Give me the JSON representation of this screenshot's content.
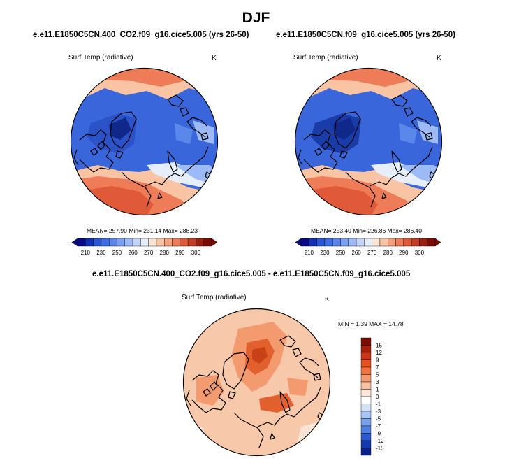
{
  "figure": {
    "title": "DJF"
  },
  "panels": [
    {
      "case": "e.e11.E1850C5CN.400_CO2.f09_g16.cice5.005 (yrs 26-50)",
      "variable": "Surf Temp (radiative)",
      "units": "K",
      "mean": "257.90",
      "min": "231.14",
      "max": "288.23",
      "stats_line": "MEAN= 257.90   Min= 231.14   Max= 288.23"
    },
    {
      "case": "e.e11.E1850C5CN.f09_g16.cice5.005 (yrs 26-50)",
      "variable": "Surf Temp (radiative)",
      "units": "K",
      "mean": "253.40",
      "min": "226.86",
      "max": "286.40",
      "stats_line": "MEAN= 253.40   Min= 226.86   Max= 286.40"
    }
  ],
  "difference": {
    "title": "e.e11.E1850C5CN.400_CO2.f09_g16.cice5.005 - e.e11.E1850C5CN.f09_g16.cice5.005",
    "variable": "Surf Temp (radiative)",
    "units": "K",
    "stats_line": "MIN =   1.39 MAX =  14.78"
  },
  "abs_colorbar": {
    "labels": [
      "210",
      "230",
      "250",
      "260",
      "270",
      "280",
      "290",
      "300"
    ],
    "colors": [
      "#08088a",
      "#1030b8",
      "#2856d8",
      "#3c6ee6",
      "#5a86ee",
      "#7ba2f2",
      "#9cbaf5",
      "#c2d4f8",
      "#e6eefa",
      "#fbe4d6",
      "#f8c4a4",
      "#f4a07c",
      "#ee7c58",
      "#e05a3a",
      "#c43c22",
      "#9e1e0e",
      "#7a0c04"
    ]
  },
  "diff_colorbar": {
    "labels": [
      "15",
      "12",
      "9",
      "7",
      "5",
      "3",
      "1",
      "0",
      "-1",
      "-3",
      "-5",
      "-7",
      "-9",
      "-12",
      "-15"
    ],
    "colors": [
      "#7a0c04",
      "#a81e0c",
      "#cc3414",
      "#e85020",
      "#f07040",
      "#f49a70",
      "#f8c0a0",
      "#fce4d6",
      "#ffffff",
      "#d4e2f8",
      "#a8c4f2",
      "#7aa0ea",
      "#5080e0",
      "#2c5ad0",
      "#1438b0",
      "#08208a"
    ]
  },
  "map_colors": {
    "ocean_ice": "#3a66dc",
    "deep_cold": "#1a3ca8",
    "cold": "#2c52c8",
    "mid_blue": "#5a88ea",
    "light_blue": "#9cbaf5",
    "pale": "#e6eefa",
    "warm_light": "#f8c4a4",
    "warm": "#ee7c58",
    "warm_strong": "#e05a3a",
    "diff_base": "#f8c8aa",
    "diff_mid": "#f39a6e",
    "diff_high": "#e2602e",
    "diff_peak": "#c84016"
  }
}
